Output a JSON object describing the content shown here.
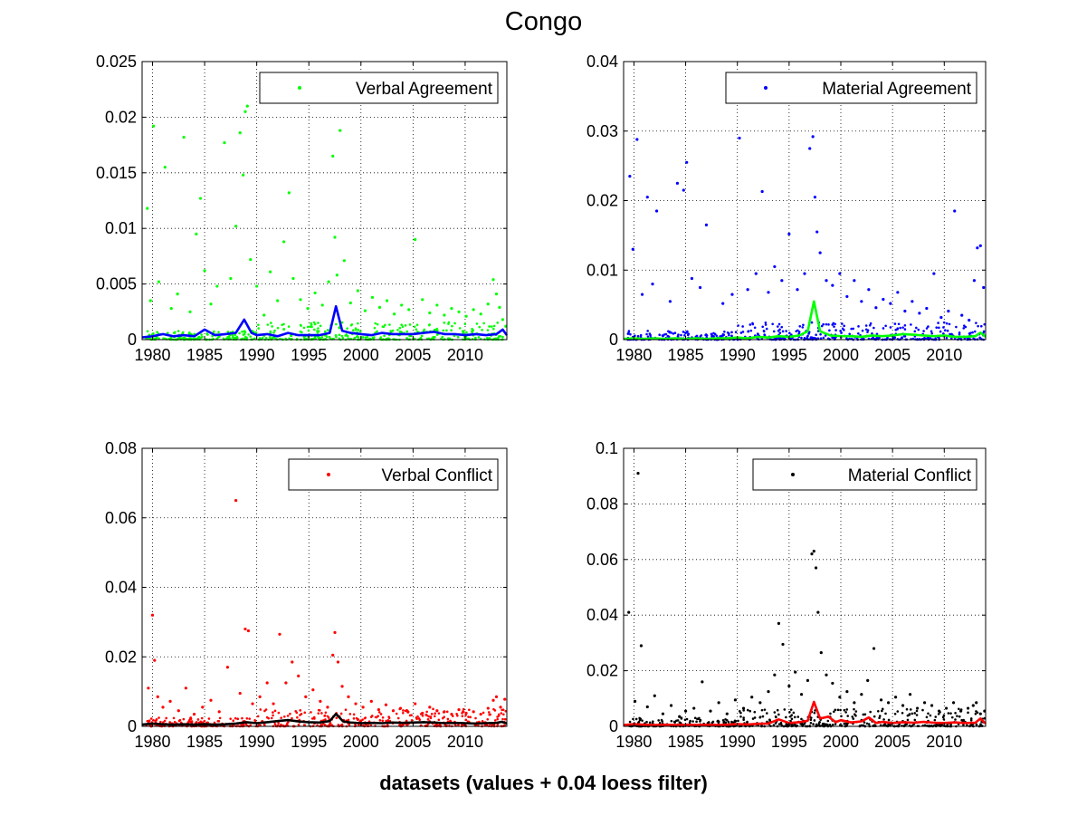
{
  "figure": {
    "title": "Congo",
    "xlabel": "datasets (values + 0.04 loess filter)"
  },
  "chart_data": [
    {
      "type": "scatter",
      "panel": "top-left",
      "xlim": [
        1979,
        2014
      ],
      "ylim": [
        0,
        0.025
      ],
      "xticks": [
        1980,
        1985,
        1990,
        1995,
        2000,
        2005,
        2010
      ],
      "yticks": [
        0,
        0.005,
        0.01,
        0.015,
        0.02,
        0.025
      ],
      "ytick_labels": [
        "0",
        "0.005",
        "0.01",
        "0.015",
        "0.02",
        "0.025"
      ],
      "grid": true,
      "legend_placement": "top-right",
      "series": [
        {
          "name": "Verbal Agreement",
          "kind": "points",
          "color": "#00ff00",
          "x": [
            1979.5,
            1979.8,
            1980.1,
            1980.6,
            1981.2,
            1981.8,
            1982.4,
            1983.0,
            1983.6,
            1984.2,
            1984.6,
            1985.0,
            1985.6,
            1986.2,
            1986.9,
            1987.5,
            1988.0,
            1988.4,
            1988.7,
            1988.9,
            1989.1,
            1989.4,
            1990.0,
            1990.7,
            1991.3,
            1992.0,
            1992.6,
            1993.1,
            1993.5,
            1994.2,
            1994.9,
            1995.6,
            1996.3,
            1996.9,
            1997.3,
            1997.5,
            1997.7,
            1998.0,
            1998.4,
            1999.0,
            1999.7,
            2000.4,
            2001.1,
            2001.8,
            2002.5,
            2003.2,
            2003.9,
            2004.6,
            2005.2,
            2005.9,
            2006.6,
            2007.3,
            2008.0,
            2008.7,
            2009.4,
            2010.1,
            2010.8,
            2011.5,
            2012.2,
            2012.7,
            2013.0,
            2013.3,
            2013.6,
            2013.9
          ],
          "y": [
            0.0118,
            0.0035,
            0.0192,
            0.0052,
            0.0155,
            0.0028,
            0.0041,
            0.0182,
            0.0025,
            0.0095,
            0.0127,
            0.0062,
            0.0032,
            0.0048,
            0.0177,
            0.0055,
            0.0102,
            0.0186,
            0.0148,
            0.0205,
            0.021,
            0.0072,
            0.0048,
            0.0022,
            0.0061,
            0.0035,
            0.0088,
            0.0132,
            0.0055,
            0.0036,
            0.0028,
            0.0042,
            0.0031,
            0.0052,
            0.0165,
            0.0092,
            0.0058,
            0.0188,
            0.0071,
            0.0033,
            0.0044,
            0.0026,
            0.0038,
            0.0029,
            0.0035,
            0.0023,
            0.0031,
            0.0027,
            0.009,
            0.0036,
            0.0024,
            0.0031,
            0.0022,
            0.0028,
            0.0025,
            0.0021,
            0.0027,
            0.0023,
            0.0032,
            0.0054,
            0.0041,
            0.0029,
            0.0018,
            0.0012
          ]
        },
        {
          "name": "",
          "kind": "line",
          "color": "#0000ff",
          "x": [
            1979,
            1980,
            1981,
            1982,
            1983,
            1984,
            1985,
            1986,
            1987,
            1988,
            1988.8,
            1989.5,
            1990,
            1991,
            1992,
            1993,
            1994,
            1995,
            1996,
            1997,
            1997.6,
            1998.2,
            1999,
            2000,
            2001,
            2002,
            2003,
            2004,
            2005,
            2006,
            2007,
            2008,
            2009,
            2010,
            2011,
            2012,
            2013,
            2013.6,
            2014
          ],
          "y": [
            0.0002,
            0.0003,
            0.0005,
            0.0003,
            0.0004,
            0.0003,
            0.0009,
            0.0004,
            0.0005,
            0.0006,
            0.0018,
            0.0006,
            0.0004,
            0.0005,
            0.0003,
            0.0006,
            0.0004,
            0.0004,
            0.0004,
            0.0006,
            0.003,
            0.0008,
            0.0006,
            0.0005,
            0.0004,
            0.0006,
            0.0005,
            0.0005,
            0.0005,
            0.0006,
            0.0007,
            0.0005,
            0.0005,
            0.0004,
            0.0005,
            0.0004,
            0.0005,
            0.0009,
            0.0004
          ]
        }
      ]
    },
    {
      "type": "scatter",
      "panel": "top-right",
      "xlim": [
        1979,
        2014
      ],
      "ylim": [
        0,
        0.04
      ],
      "xticks": [
        1980,
        1985,
        1990,
        1995,
        2000,
        2005,
        2010
      ],
      "yticks": [
        0,
        0.01,
        0.02,
        0.03,
        0.04
      ],
      "ytick_labels": [
        "0",
        "0.01",
        "0.02",
        "0.03",
        "0.04"
      ],
      "grid": true,
      "legend_placement": "top-right",
      "series": [
        {
          "name": "Material Agreement",
          "kind": "points",
          "color": "#0000ff",
          "x": [
            1979.6,
            1979.9,
            1980.3,
            1980.8,
            1981.3,
            1981.8,
            1982.2,
            1983.5,
            1984.2,
            1984.8,
            1985.1,
            1985.6,
            1986.4,
            1987.0,
            1988.6,
            1989.5,
            1990.2,
            1991.0,
            1991.8,
            1992.4,
            1993.0,
            1993.6,
            1994.3,
            1995.0,
            1995.8,
            1996.5,
            1997.0,
            1997.3,
            1997.5,
            1997.7,
            1998.0,
            1998.6,
            1999.2,
            1999.9,
            2000.6,
            2001.3,
            2002.0,
            2002.7,
            2003.4,
            2004.1,
            2004.8,
            2005.5,
            2006.2,
            2006.9,
            2007.6,
            2008.3,
            2009.0,
            2009.7,
            2010.4,
            2011.0,
            2011.7,
            2012.4,
            2012.9,
            2013.2,
            2013.5,
            2013.8
          ],
          "y": [
            0.0235,
            0.013,
            0.0288,
            0.0065,
            0.0205,
            0.008,
            0.0185,
            0.0055,
            0.0225,
            0.0215,
            0.0255,
            0.0088,
            0.0075,
            0.0165,
            0.0052,
            0.0065,
            0.029,
            0.0072,
            0.0095,
            0.0213,
            0.0068,
            0.0105,
            0.0085,
            0.0152,
            0.0072,
            0.0095,
            0.0275,
            0.0292,
            0.0205,
            0.0155,
            0.0125,
            0.0085,
            0.0078,
            0.0095,
            0.0062,
            0.0085,
            0.0055,
            0.0072,
            0.0046,
            0.0058,
            0.0052,
            0.0068,
            0.0041,
            0.0055,
            0.0038,
            0.0045,
            0.0095,
            0.0032,
            0.0041,
            0.0185,
            0.0035,
            0.0028,
            0.0085,
            0.0132,
            0.0135,
            0.0075
          ]
        },
        {
          "name": "",
          "kind": "line",
          "color": "#00ff00",
          "x": [
            1979,
            1980,
            1981,
            1982,
            1983,
            1984,
            1985,
            1986,
            1987,
            1988,
            1989,
            1990,
            1991,
            1992,
            1993,
            1994,
            1995,
            1996,
            1996.8,
            1997.4,
            1998.0,
            1999,
            2000,
            2001,
            2002,
            2003,
            2004,
            2005,
            2006,
            2007,
            2008,
            2009,
            2010,
            2011,
            2012,
            2013,
            2013.5,
            2014
          ],
          "y": [
            0.0001,
            0.0002,
            0.0001,
            0.0002,
            0.0001,
            0.0002,
            0.0001,
            0.0002,
            0.0001,
            0.0002,
            0.0002,
            0.0003,
            0.0002,
            0.0004,
            0.0003,
            0.0005,
            0.0004,
            0.0006,
            0.0012,
            0.0055,
            0.0012,
            0.0006,
            0.0005,
            0.0005,
            0.0004,
            0.0006,
            0.0005,
            0.0006,
            0.0008,
            0.0007,
            0.0006,
            0.0005,
            0.0006,
            0.0004,
            0.0004,
            0.0005,
            0.001,
            0.0004
          ]
        }
      ]
    },
    {
      "type": "scatter",
      "panel": "bottom-left",
      "xlim": [
        1979,
        2014
      ],
      "ylim": [
        0,
        0.08
      ],
      "xticks": [
        1980,
        1985,
        1990,
        1995,
        2000,
        2005,
        2010
      ],
      "yticks": [
        0,
        0.02,
        0.04,
        0.06,
        0.08
      ],
      "ytick_labels": [
        "0",
        "0.02",
        "0.04",
        "0.06",
        "0.08"
      ],
      "grid": true,
      "legend_placement": "top-right",
      "series": [
        {
          "name": "Verbal Conflict",
          "kind": "points",
          "color": "#ff0000",
          "x": [
            1979.6,
            1980.0,
            1980.2,
            1980.5,
            1981.0,
            1981.7,
            1982.5,
            1983.2,
            1984.0,
            1984.8,
            1985.6,
            1986.4,
            1987.2,
            1988.0,
            1988.4,
            1988.9,
            1989.2,
            1989.6,
            1990.3,
            1991.0,
            1991.6,
            1992.2,
            1992.8,
            1993.4,
            1994.0,
            1994.7,
            1995.4,
            1996.1,
            1996.8,
            1997.3,
            1997.5,
            1997.8,
            1998.2,
            1998.8,
            1999.5,
            2000.2,
            2001.0,
            2001.7,
            2002.4,
            2003.1,
            2003.8,
            2004.5,
            2005.2,
            2005.9,
            2006.6,
            2007.3,
            2008.0,
            2008.7,
            2009.4,
            2010.1,
            2010.8,
            2011.5,
            2012.2,
            2012.7,
            2013.0,
            2013.4,
            2013.8
          ],
          "y": [
            0.011,
            0.032,
            0.019,
            0.0085,
            0.0055,
            0.0072,
            0.0045,
            0.011,
            0.0035,
            0.0055,
            0.0075,
            0.0042,
            0.017,
            0.065,
            0.0095,
            0.028,
            0.0275,
            0.0065,
            0.0085,
            0.0125,
            0.0065,
            0.0265,
            0.0125,
            0.0185,
            0.0145,
            0.0085,
            0.0105,
            0.0072,
            0.0055,
            0.0205,
            0.027,
            0.0185,
            0.0115,
            0.0085,
            0.0065,
            0.0055,
            0.0072,
            0.0048,
            0.0062,
            0.0045,
            0.0052,
            0.0042,
            0.0065,
            0.0038,
            0.0055,
            0.0045,
            0.0042,
            0.0035,
            0.0048,
            0.0038,
            0.0042,
            0.0035,
            0.0052,
            0.0075,
            0.0085,
            0.0055,
            0.0078
          ]
        },
        {
          "name": "",
          "kind": "line",
          "color": "#000000",
          "x": [
            1979,
            1980,
            1981,
            1982,
            1983,
            1984,
            1985,
            1986,
            1987,
            1988,
            1989,
            1990,
            1991,
            1992,
            1993,
            1994,
            1995,
            1996,
            1997,
            1997.6,
            1998.3,
            1999,
            2000,
            2001,
            2002,
            2003,
            2004,
            2005,
            2006,
            2007,
            2008,
            2009,
            2010,
            2011,
            2012,
            2013,
            2013.5,
            2014
          ],
          "y": [
            0.0005,
            0.0008,
            0.0006,
            0.0005,
            0.0006,
            0.0005,
            0.0006,
            0.0005,
            0.0006,
            0.0008,
            0.0012,
            0.0009,
            0.0012,
            0.0015,
            0.0018,
            0.0014,
            0.0012,
            0.0011,
            0.0015,
            0.0036,
            0.0014,
            0.0011,
            0.0009,
            0.001,
            0.0009,
            0.0011,
            0.001,
            0.0011,
            0.0012,
            0.0011,
            0.0009,
            0.001,
            0.0009,
            0.0008,
            0.0009,
            0.001,
            0.0013,
            0.0008
          ]
        }
      ]
    },
    {
      "type": "scatter",
      "panel": "bottom-right",
      "xlim": [
        1979,
        2014
      ],
      "ylim": [
        0,
        0.1
      ],
      "xticks": [
        1980,
        1985,
        1990,
        1995,
        2000,
        2005,
        2010
      ],
      "yticks": [
        0,
        0.02,
        0.04,
        0.06,
        0.08,
        0.1
      ],
      "ytick_labels": [
        "0",
        "0.02",
        "0.04",
        "0.06",
        "0.08",
        "0.1"
      ],
      "grid": true,
      "legend_placement": "top-right",
      "series": [
        {
          "name": "Material Conflict",
          "kind": "points",
          "color": "#000000",
          "x": [
            1979.5,
            1980.1,
            1980.4,
            1980.7,
            1981.3,
            1982.0,
            1982.8,
            1983.6,
            1984.4,
            1985.0,
            1985.8,
            1986.6,
            1987.4,
            1988.2,
            1989.0,
            1989.8,
            1990.6,
            1991.4,
            1992.2,
            1993.0,
            1993.6,
            1994.0,
            1994.4,
            1995.0,
            1995.6,
            1996.2,
            1996.8,
            1997.2,
            1997.4,
            1997.6,
            1997.8,
            1998.1,
            1998.6,
            1999.2,
            1999.9,
            2000.6,
            2001.3,
            2002.0,
            2002.6,
            2003.2,
            2003.9,
            2004.6,
            2005.3,
            2006.0,
            2006.7,
            2007.4,
            2008.1,
            2008.8,
            2009.5,
            2010.2,
            2010.9,
            2011.6,
            2012.3,
            2012.8,
            2013.1,
            2013.5,
            2013.9
          ],
          "y": [
            0.041,
            0.009,
            0.091,
            0.029,
            0.007,
            0.011,
            0.0045,
            0.0075,
            0.0035,
            0.0055,
            0.0065,
            0.016,
            0.0055,
            0.0085,
            0.0045,
            0.0095,
            0.0065,
            0.0105,
            0.0085,
            0.0125,
            0.0185,
            0.037,
            0.0295,
            0.0145,
            0.0195,
            0.0115,
            0.0165,
            0.062,
            0.063,
            0.057,
            0.041,
            0.0265,
            0.0185,
            0.0155,
            0.0105,
            0.0125,
            0.0085,
            0.0115,
            0.0165,
            0.028,
            0.0095,
            0.0085,
            0.0105,
            0.0075,
            0.0115,
            0.0065,
            0.0085,
            0.0075,
            0.0055,
            0.0065,
            0.0085,
            0.0055,
            0.0065,
            0.0075,
            0.0085,
            0.0045,
            0.0055
          ]
        },
        {
          "name": "",
          "kind": "line",
          "color": "#ff0000",
          "x": [
            1979,
            1980,
            1981,
            1982,
            1983,
            1984,
            1985,
            1986,
            1987,
            1988,
            1989,
            1990,
            1991,
            1992,
            1993,
            1994,
            1995,
            1996,
            1996.8,
            1997.4,
            1998.0,
            1998.8,
            1999.5,
            2000,
            2001,
            2002,
            2002.7,
            2003.4,
            2004,
            2005,
            2006,
            2007,
            2008,
            2009,
            2010,
            2011,
            2012,
            2013,
            2013.5,
            2014
          ],
          "y": [
            0.0005,
            0.0008,
            0.0006,
            0.0005,
            0.0006,
            0.0005,
            0.0006,
            0.0005,
            0.0006,
            0.0005,
            0.0006,
            0.0008,
            0.0007,
            0.0009,
            0.001,
            0.0025,
            0.0012,
            0.0015,
            0.002,
            0.0088,
            0.0028,
            0.0035,
            0.0015,
            0.0022,
            0.0014,
            0.0018,
            0.0032,
            0.0012,
            0.0016,
            0.0012,
            0.0015,
            0.0013,
            0.0016,
            0.0013,
            0.0012,
            0.0014,
            0.0012,
            0.0013,
            0.0028,
            0.001
          ]
        }
      ]
    }
  ]
}
